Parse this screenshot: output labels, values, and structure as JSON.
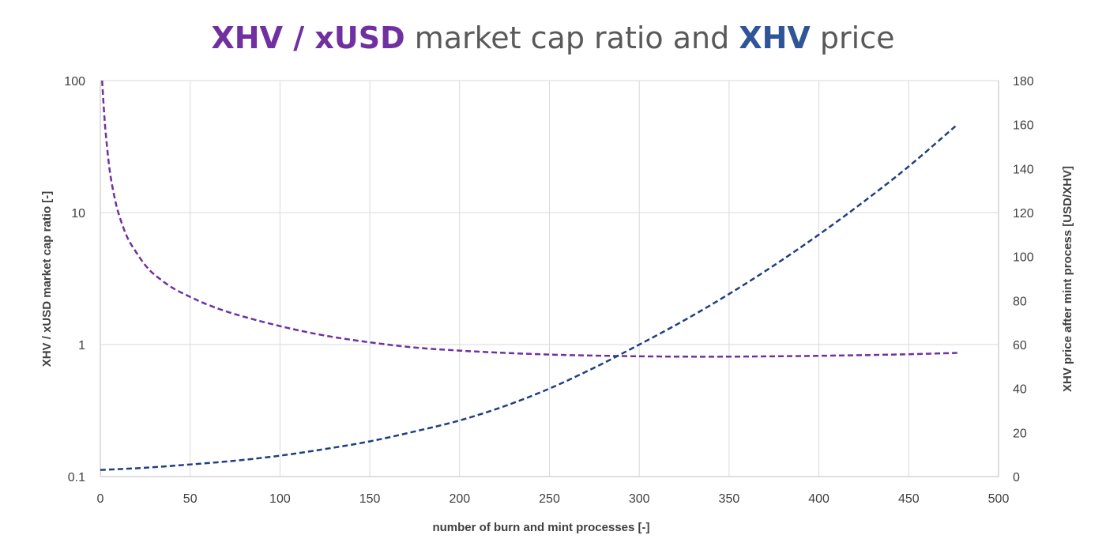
{
  "title": {
    "segments": [
      {
        "text": "XHV / xUSD",
        "bold": true,
        "color": "#7030A0"
      },
      {
        "text": " market cap ratio and ",
        "bold": false,
        "color": "#595959"
      },
      {
        "text": "XHV",
        "bold": true,
        "color": "#2F5597"
      },
      {
        "text": " price",
        "bold": false,
        "color": "#595959"
      }
    ]
  },
  "chart_data": {
    "type": "line",
    "xlabel": "number of burn and mint processes [-]",
    "ylabel_left": "XHV / xUSD market cap ratio [-]",
    "ylabel_right": "XHV price after mint process [USD/XHV]",
    "xlim": [
      0,
      500
    ],
    "x_ticks": [
      0,
      50,
      100,
      150,
      200,
      250,
      300,
      350,
      400,
      450,
      500
    ],
    "y_left": {
      "scale": "log",
      "lim": [
        0.1,
        100
      ],
      "ticks": [
        0.1,
        1,
        10,
        100
      ],
      "tick_labels": [
        "0.1",
        "1",
        "10",
        "100"
      ]
    },
    "y_right": {
      "scale": "linear",
      "lim": [
        0,
        180
      ],
      "ticks": [
        0,
        20,
        40,
        60,
        80,
        100,
        120,
        140,
        160,
        180
      ]
    },
    "grid": true,
    "series": [
      {
        "axis": "left",
        "color": "#7030A0",
        "dash": "dashed",
        "points": [
          [
            1,
            100
          ],
          [
            2,
            60
          ],
          [
            3,
            40
          ],
          [
            5,
            22
          ],
          [
            7,
            15
          ],
          [
            10,
            10
          ],
          [
            15,
            6.5
          ],
          [
            20,
            5
          ],
          [
            25,
            4
          ],
          [
            30,
            3.4
          ],
          [
            40,
            2.7
          ],
          [
            50,
            2.3
          ],
          [
            60,
            2.0
          ],
          [
            75,
            1.7
          ],
          [
            100,
            1.38
          ],
          [
            125,
            1.17
          ],
          [
            150,
            1.04
          ],
          [
            175,
            0.95
          ],
          [
            200,
            0.9
          ],
          [
            225,
            0.865
          ],
          [
            250,
            0.84
          ],
          [
            275,
            0.825
          ],
          [
            300,
            0.815
          ],
          [
            325,
            0.81
          ],
          [
            350,
            0.81
          ],
          [
            375,
            0.815
          ],
          [
            400,
            0.822
          ],
          [
            425,
            0.832
          ],
          [
            450,
            0.845
          ],
          [
            477,
            0.865
          ]
        ]
      },
      {
        "axis": "right",
        "color": "#1F3F7F",
        "dash": "dashed",
        "points": [
          [
            0,
            3
          ],
          [
            25,
            4
          ],
          [
            50,
            5.5
          ],
          [
            75,
            7.2
          ],
          [
            100,
            9.5
          ],
          [
            125,
            12.5
          ],
          [
            150,
            16
          ],
          [
            175,
            20.5
          ],
          [
            200,
            25.5
          ],
          [
            225,
            32
          ],
          [
            250,
            40
          ],
          [
            275,
            49.5
          ],
          [
            300,
            60
          ],
          [
            325,
            71
          ],
          [
            350,
            83
          ],
          [
            375,
            96
          ],
          [
            400,
            110
          ],
          [
            425,
            125
          ],
          [
            450,
            141
          ],
          [
            477,
            160
          ]
        ]
      }
    ]
  }
}
